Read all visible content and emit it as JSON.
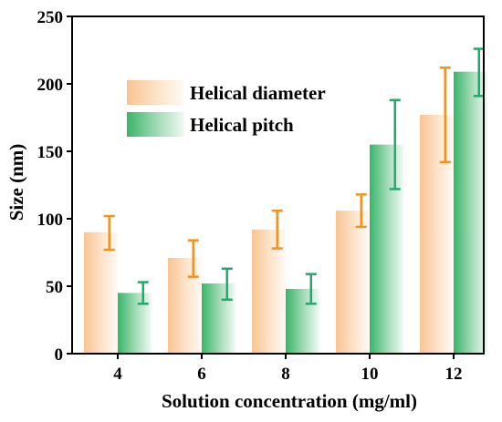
{
  "colors": {
    "diameter_bar": "#f8c493",
    "pitch_bar": "#39b56a",
    "diameter_err": "#f39121",
    "pitch_err": "#23a86d",
    "axis": "#000000"
  },
  "chart_data": {
    "type": "bar",
    "xlabel": "Solution concentration (mg/ml)",
    "ylabel": "Size (nm)",
    "categories": [
      "4",
      "6",
      "8",
      "10",
      "12"
    ],
    "ylim": [
      0,
      250
    ],
    "yticks": [
      "0",
      "50",
      "100",
      "150",
      "200",
      "250"
    ],
    "grid": false,
    "legend_position": "upper-left",
    "series": [
      {
        "name": "Helical diameter",
        "values": [
          90,
          71,
          92,
          106,
          177
        ],
        "err_low": [
          77,
          57,
          78,
          94,
          142
        ],
        "err_high": [
          102,
          84,
          106,
          118,
          212
        ]
      },
      {
        "name": "Helical pitch",
        "values": [
          45,
          52,
          48,
          155,
          209
        ],
        "err_low": [
          37,
          40,
          37,
          122,
          191
        ],
        "err_high": [
          53,
          63,
          59,
          188,
          226
        ]
      }
    ]
  }
}
